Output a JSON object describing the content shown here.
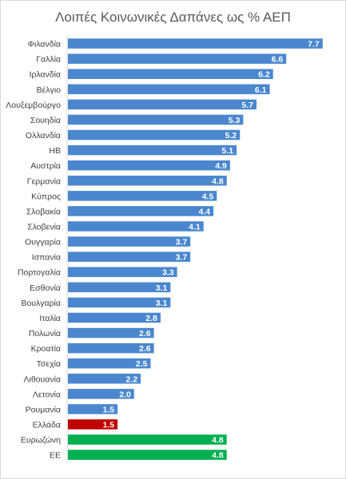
{
  "chart_data": {
    "type": "bar",
    "orientation": "horizontal",
    "title": "Λοιπές Κοινωνικές Δαπάνες ως % ΑΕΠ",
    "xlabel": "",
    "ylabel": "",
    "xlim": [
      0,
      8
    ],
    "grid": false,
    "legend": "none",
    "data_labels": true,
    "categories": [
      "Φιλανδία",
      "Γαλλία",
      "Ιρλανδία",
      "Βέλγιο",
      "Λουξεμβούργο",
      "Σουηδία",
      "Ολλανδία",
      "ΗΒ",
      "Αυστρία",
      "Γερμανία",
      "Κύπρος",
      "Σλοβακία",
      "Σλοβενία",
      "Ουγγαρία",
      "Ισπανία",
      "Πορτογαλία",
      "Εσθονία",
      "Βουλγαρία",
      "Ιταλία",
      "Πολωνία",
      "Κροατία",
      "Τσεχία",
      "Λιθουανία",
      "Λετονία",
      "Ρουμανία",
      "Ελλάδα",
      "Ευρωζώνη",
      "ΕΕ"
    ],
    "values": [
      7.7,
      6.6,
      6.2,
      6.1,
      5.7,
      5.3,
      5.2,
      5.1,
      4.9,
      4.8,
      4.5,
      4.4,
      4.1,
      3.7,
      3.7,
      3.3,
      3.1,
      3.1,
      2.8,
      2.6,
      2.6,
      2.5,
      2.2,
      2.0,
      1.5,
      1.5,
      4.8,
      4.8
    ],
    "value_labels": [
      "7.7",
      "6.6",
      "6.2",
      "6.1",
      "5.7",
      "5.3",
      "5.2",
      "5.1",
      "4.9",
      "4.8",
      "4.5",
      "4.4",
      "4.1",
      "3.7",
      "3.7",
      "3.3",
      "3.1",
      "3.1",
      "2.8",
      "2.6",
      "2.6",
      "2.5",
      "2.2",
      "2.0",
      "1.5",
      "1.5",
      "4.8",
      "4.8"
    ],
    "colors": {
      "default": "#4a87cf",
      "highlight": "#c00000",
      "aggregate": "#00b050"
    },
    "highlight_categories": [
      "Ελλάδα"
    ],
    "aggregate_categories": [
      "Ευρωζώνη",
      "ΕΕ"
    ]
  }
}
